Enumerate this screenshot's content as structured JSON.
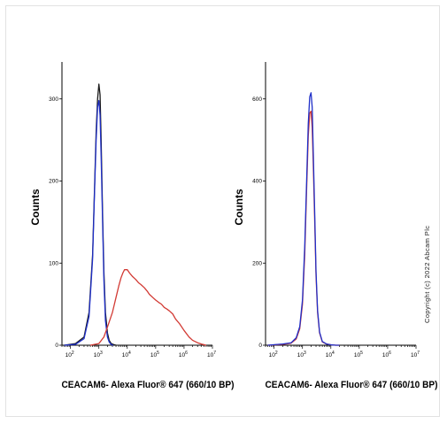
{
  "colors": {
    "black_series": "#1a1a1a",
    "blue_series": "#1f2fc8",
    "red_series": "#d23a34",
    "axis": "#000000"
  },
  "copyright": "Copyright (c) 2022 Abcam Plc",
  "chart_data": [
    {
      "type": "line",
      "title": "",
      "xlabel": "CEACAM6- Alexa Fluor® 647  (660/10 BP)",
      "ylabel": "Counts",
      "x_scale": "log",
      "xlim": [
        50,
        10000000
      ],
      "ylim": [
        0,
        345
      ],
      "x_ticks": [
        {
          "base": "10",
          "exp": "2"
        },
        {
          "base": "10",
          "exp": "3"
        },
        {
          "base": "10",
          "exp": "4"
        },
        {
          "base": "10",
          "exp": "5"
        },
        {
          "base": "10",
          "exp": "6"
        },
        {
          "base": "10",
          "exp": "7"
        }
      ],
      "y_ticks": [
        0,
        100,
        200,
        300
      ],
      "grid": false,
      "series": [
        {
          "color": "black",
          "x": [
            60,
            150,
            300,
            450,
            600,
            700,
            800,
            900,
            1000,
            1100,
            1200,
            1350,
            1500,
            1700,
            2000,
            2300,
            2700,
            3200,
            4000
          ],
          "y": [
            0,
            2,
            10,
            40,
            110,
            190,
            260,
            300,
            318,
            305,
            250,
            160,
            90,
            40,
            15,
            6,
            2,
            1,
            0
          ]
        },
        {
          "color": "blue",
          "x": [
            60,
            150,
            300,
            450,
            600,
            700,
            800,
            900,
            1000,
            1100,
            1200,
            1350,
            1500,
            1700,
            2000,
            2300,
            2700,
            3200
          ],
          "y": [
            0,
            1,
            8,
            35,
            105,
            185,
            250,
            290,
            298,
            280,
            230,
            150,
            80,
            30,
            10,
            4,
            1,
            0
          ]
        },
        {
          "color": "red",
          "x": [
            500,
            1000,
            1500,
            2000,
            3000,
            4000,
            5000,
            6000,
            7000,
            8000,
            10000,
            12000,
            15000,
            20000,
            25000,
            30000,
            40000,
            50000,
            60000,
            80000,
            100000,
            130000,
            160000,
            200000,
            250000,
            300000,
            400000,
            500000,
            700000,
            1000000,
            1500000,
            2000000,
            3000000,
            4500000,
            6000000
          ],
          "y": [
            0,
            2,
            10,
            22,
            40,
            58,
            72,
            82,
            88,
            92,
            92,
            88,
            84,
            80,
            76,
            74,
            70,
            66,
            62,
            58,
            55,
            52,
            50,
            46,
            44,
            42,
            38,
            32,
            26,
            18,
            10,
            6,
            3,
            1,
            0
          ]
        }
      ]
    },
    {
      "type": "line",
      "title": "",
      "xlabel": "CEACAM6- Alexa Fluor® 647  (660/10 BP)",
      "ylabel": "Counts",
      "x_scale": "log",
      "xlim": [
        50,
        10000000
      ],
      "ylim": [
        0,
        690
      ],
      "x_ticks": [
        {
          "base": "10",
          "exp": "2"
        },
        {
          "base": "10",
          "exp": "3"
        },
        {
          "base": "10",
          "exp": "4"
        },
        {
          "base": "10",
          "exp": "5"
        },
        {
          "base": "10",
          "exp": "6"
        },
        {
          "base": "10",
          "exp": "7"
        }
      ],
      "y_ticks": [
        0,
        200,
        400,
        600
      ],
      "grid": false,
      "series": [
        {
          "color": "red",
          "x": [
            60,
            200,
            400,
            600,
            800,
            1000,
            1200,
            1400,
            1600,
            1800,
            2000,
            2200,
            2400,
            2700,
            3000,
            3400,
            4000,
            5000,
            7000,
            10000,
            15000,
            20000
          ],
          "y": [
            0,
            2,
            5,
            15,
            40,
            100,
            220,
            380,
            510,
            565,
            570,
            530,
            440,
            300,
            170,
            80,
            30,
            8,
            3,
            1,
            0,
            0
          ]
        },
        {
          "color": "blue",
          "x": [
            60,
            200,
            400,
            600,
            800,
            1000,
            1200,
            1400,
            1600,
            1800,
            2000,
            2200,
            2400,
            2700,
            3000,
            3400,
            4000,
            5000,
            7000,
            10000,
            15000,
            20000
          ],
          "y": [
            0,
            3,
            6,
            18,
            45,
            110,
            240,
            400,
            540,
            605,
            615,
            580,
            470,
            320,
            180,
            85,
            32,
            9,
            3,
            1,
            0,
            0
          ]
        }
      ]
    }
  ]
}
